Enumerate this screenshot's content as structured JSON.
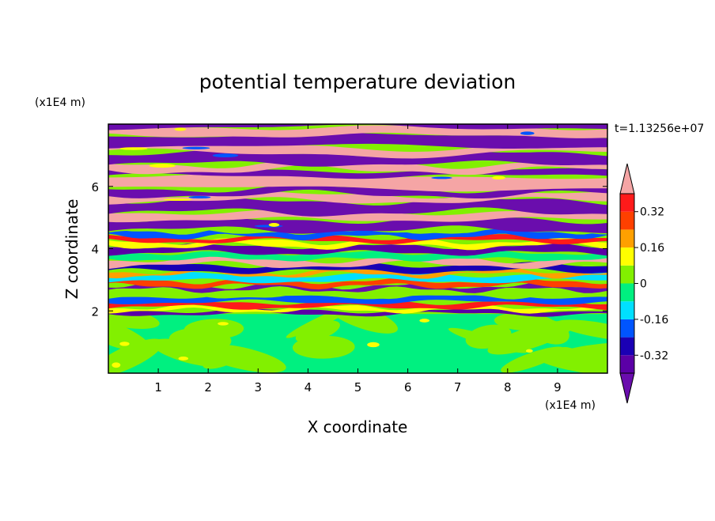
{
  "chart_data": {
    "type": "heatmap",
    "title": "potential temperature deviation",
    "xlabel": "X coordinate",
    "ylabel": "Z coordinate",
    "x_unit": "(x1E4 m)",
    "y_unit": "(x1E4 m)",
    "time_label": "t=1.13256e+07",
    "xlim": [
      0,
      10
    ],
    "ylim": [
      0,
      8
    ],
    "x_ticks": [
      "1",
      "2",
      "3",
      "4",
      "5",
      "6",
      "7",
      "8",
      "9"
    ],
    "y_ticks": [
      "2",
      "4",
      "6"
    ],
    "grid": false,
    "legend_position": "right",
    "colorbar": {
      "labels": [
        "0.32",
        "0.16",
        "0",
        "-0.16",
        "-0.32"
      ],
      "levels": [
        -0.4,
        -0.32,
        -0.24,
        -0.16,
        -0.08,
        0,
        0.08,
        0.16,
        0.24,
        0.32,
        0.4
      ],
      "colors": [
        "#5b00a6",
        "#1a00b4",
        "#0055ff",
        "#00e0ff",
        "#00f080",
        "#82f000",
        "#ffff00",
        "#ffa000",
        "#ff4000",
        "#ff1a1a"
      ],
      "under_color": "#6a0dad",
      "over_color": "#f5a5a5",
      "extend": "both"
    },
    "regions": {
      "lower_layer_z": [
        0,
        1.9
      ],
      "lower_layer_values": "near 0 (green / light-green patches, small positive and negative excursions)",
      "middle_layer_z": [
        1.9,
        4.6
      ],
      "middle_layer_values": "full range -0.4 to 0.4, tightly banded horizontal waves",
      "upper_layer_z": [
        4.6,
        8
      ],
      "upper_layer_values": "alternating saturated bands below -0.4 (purple) and above 0.4 (pink)"
    }
  }
}
